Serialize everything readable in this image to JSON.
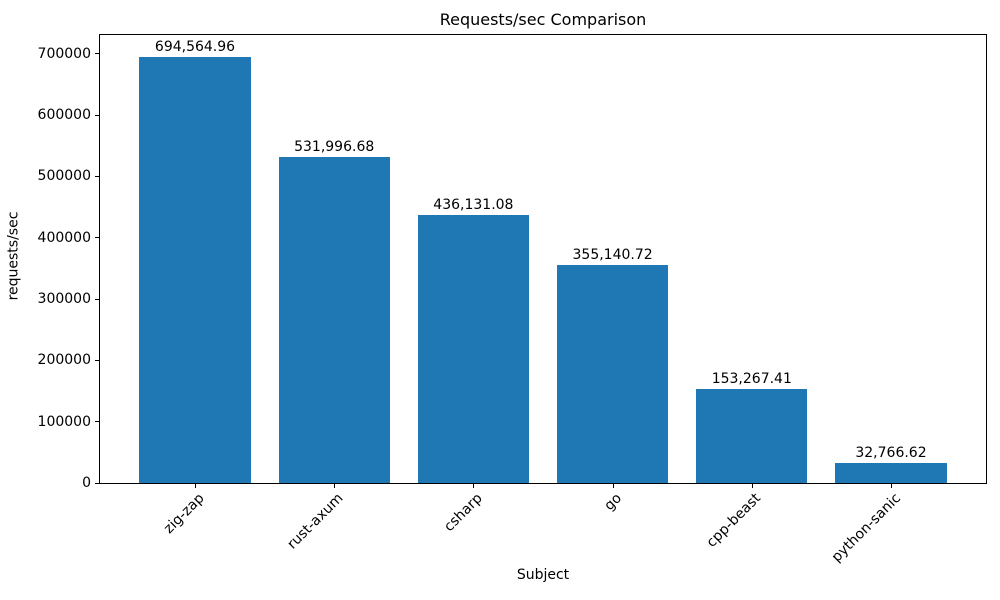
{
  "chart_data": {
    "type": "bar",
    "title": "Requests/sec Comparison",
    "xlabel": "Subject",
    "ylabel": "requests/sec",
    "categories": [
      "zig-zap",
      "rust-axum",
      "csharp",
      "go",
      "cpp-beast",
      "python-sanic"
    ],
    "values": [
      694564.96,
      531996.68,
      436131.08,
      355140.72,
      153267.41,
      32766.62
    ],
    "value_labels": [
      "694,564.96",
      "531,996.68",
      "436,131.08",
      "355,140.72",
      "153,267.41",
      "32,766.62"
    ],
    "bar_color": "#1f77b4",
    "ylim": [
      0,
      732000
    ],
    "yticks": [
      0,
      100000,
      200000,
      300000,
      400000,
      500000,
      600000,
      700000
    ],
    "ytick_labels": [
      "0",
      "100000",
      "200000",
      "300000",
      "400000",
      "500000",
      "600000",
      "700000"
    ],
    "grid": false,
    "legend_position": "none"
  }
}
